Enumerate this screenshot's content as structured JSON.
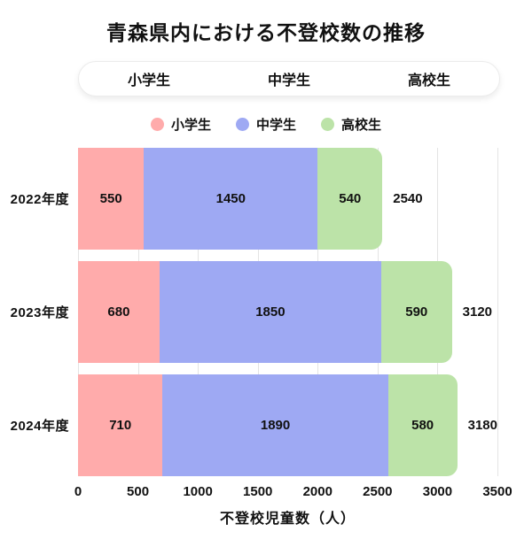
{
  "title": "青森県内における不登校数の推移",
  "tabs": {
    "items": [
      "小学生",
      "中学生",
      "高校生"
    ]
  },
  "legend": {
    "items": [
      {
        "label": "小学生",
        "color": "#ffabab"
      },
      {
        "label": "中学生",
        "color": "#9ea9f3"
      },
      {
        "label": "高校生",
        "color": "#bce3a8"
      }
    ]
  },
  "chart_data": {
    "type": "bar",
    "orientation": "horizontal",
    "stacked": true,
    "title": "青森県内における不登校数の推移",
    "categories": [
      "2022年度",
      "2023年度",
      "2024年度"
    ],
    "series": [
      {
        "name": "小学生",
        "color": "#ffabab",
        "values": [
          550,
          680,
          710
        ]
      },
      {
        "name": "中学生",
        "color": "#9ea9f3",
        "values": [
          1450,
          1850,
          1890
        ]
      },
      {
        "name": "高校生",
        "color": "#bce3a8",
        "values": [
          540,
          590,
          580
        ]
      }
    ],
    "totals": [
      2540,
      3120,
      3180
    ],
    "xlabel": "不登校児童数（人）",
    "xticks": [
      0,
      500,
      1000,
      1500,
      2000,
      2500,
      3000,
      3500
    ],
    "xlim": [
      0,
      3500
    ],
    "grid": true,
    "legend_position": "top"
  }
}
